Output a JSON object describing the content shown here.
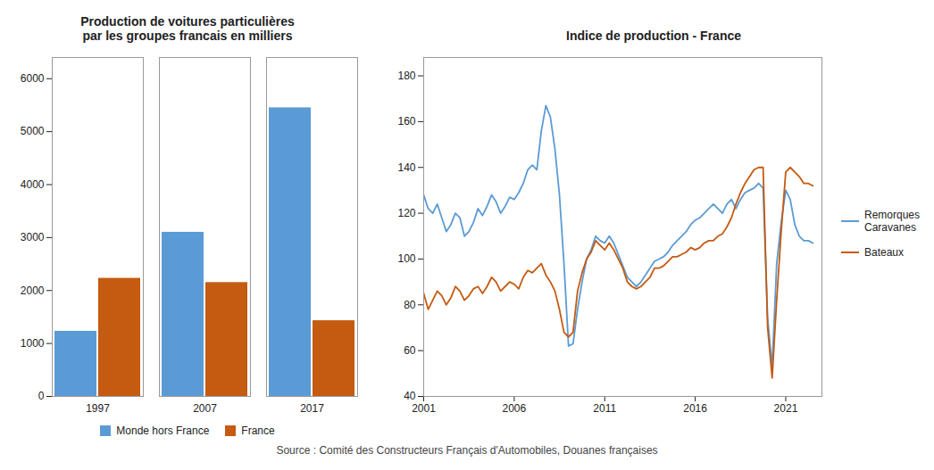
{
  "chart_data": [
    {
      "type": "bar",
      "title": "Production de voitures particulières\npar les groupes francais en milliers",
      "categories": [
        "1997",
        "2007",
        "2017"
      ],
      "series": [
        {
          "name": "Monde hors France",
          "color": "#5B9BD5",
          "values": [
            1230,
            3100,
            5450
          ]
        },
        {
          "name": "France",
          "color": "#C55A11",
          "values": [
            2230,
            2150,
            1430
          ]
        }
      ],
      "ylim": [
        0,
        6400
      ],
      "yticks": [
        0,
        1000,
        2000,
        3000,
        4000,
        5000,
        6000
      ],
      "grid": false,
      "legend": "bottom"
    },
    {
      "type": "line",
      "title": "Indice de production - France",
      "x": [
        2001,
        2001.25,
        2001.5,
        2001.75,
        2002,
        2002.25,
        2002.5,
        2002.75,
        2003,
        2003.25,
        2003.5,
        2003.75,
        2004,
        2004.25,
        2004.5,
        2004.75,
        2005,
        2005.25,
        2005.5,
        2005.75,
        2006,
        2006.25,
        2006.5,
        2006.75,
        2007,
        2007.25,
        2007.5,
        2007.75,
        2008,
        2008.25,
        2008.5,
        2008.75,
        2009,
        2009.25,
        2009.5,
        2009.75,
        2010,
        2010.25,
        2010.5,
        2010.75,
        2011,
        2011.25,
        2011.5,
        2011.75,
        2012,
        2012.25,
        2012.5,
        2012.75,
        2013,
        2013.25,
        2013.5,
        2013.75,
        2014,
        2014.25,
        2014.5,
        2014.75,
        2015,
        2015.25,
        2015.5,
        2015.75,
        2016,
        2016.25,
        2016.5,
        2016.75,
        2017,
        2017.25,
        2017.5,
        2017.75,
        2018,
        2018.25,
        2018.5,
        2018.75,
        2019,
        2019.25,
        2019.5,
        2019.75,
        2020,
        2020.25,
        2020.5,
        2020.75,
        2021,
        2021.25,
        2021.5,
        2021.75,
        2022,
        2022.25,
        2022.5
      ],
      "series": [
        {
          "name": "Remorques\nCaravanes",
          "color": "#5B9BD5",
          "values": [
            128,
            122,
            120,
            124,
            118,
            112,
            115,
            120,
            118,
            110,
            112,
            116,
            122,
            119,
            123,
            128,
            125,
            120,
            123,
            127,
            126,
            129,
            133,
            139,
            141,
            139,
            156,
            167,
            162,
            148,
            128,
            98,
            62,
            63,
            78,
            90,
            100,
            104,
            110,
            108,
            107,
            110,
            107,
            102,
            97,
            92,
            90,
            88,
            90,
            93,
            96,
            99,
            100,
            101,
            103,
            106,
            108,
            110,
            112,
            115,
            117,
            118,
            120,
            122,
            124,
            122,
            120,
            124,
            126,
            122,
            126,
            129,
            130,
            131,
            133,
            131,
            74,
            53,
            98,
            116,
            130,
            126,
            115,
            110,
            108,
            108,
            107
          ]
        },
        {
          "name": "Bateaux",
          "color": "#C55A11",
          "values": [
            85,
            78,
            82,
            86,
            84,
            80,
            83,
            88,
            86,
            82,
            84,
            87,
            88,
            85,
            88,
            92,
            90,
            86,
            88,
            90,
            89,
            87,
            92,
            95,
            94,
            96,
            98,
            93,
            90,
            86,
            78,
            68,
            66,
            68,
            86,
            94,
            100,
            103,
            108,
            106,
            104,
            107,
            104,
            100,
            96,
            90,
            88,
            87,
            88,
            90,
            92,
            96,
            96,
            97,
            99,
            101,
            101,
            102,
            103,
            105,
            104,
            105,
            107,
            108,
            108,
            110,
            111,
            114,
            118,
            124,
            129,
            133,
            136,
            139,
            140,
            140,
            70,
            48,
            82,
            112,
            138,
            140,
            138,
            136,
            133,
            133,
            132
          ]
        }
      ],
      "xlim": [
        2001,
        2023
      ],
      "xticks": [
        2001,
        2006,
        2011,
        2016,
        2021
      ],
      "ylim": [
        40,
        188
      ],
      "yticks": [
        40,
        60,
        80,
        100,
        120,
        140,
        160,
        180
      ],
      "grid": false,
      "legend": "right"
    }
  ],
  "caption": "Source : Comité des Constructeurs Français d'Automobiles, Douanes françaises"
}
